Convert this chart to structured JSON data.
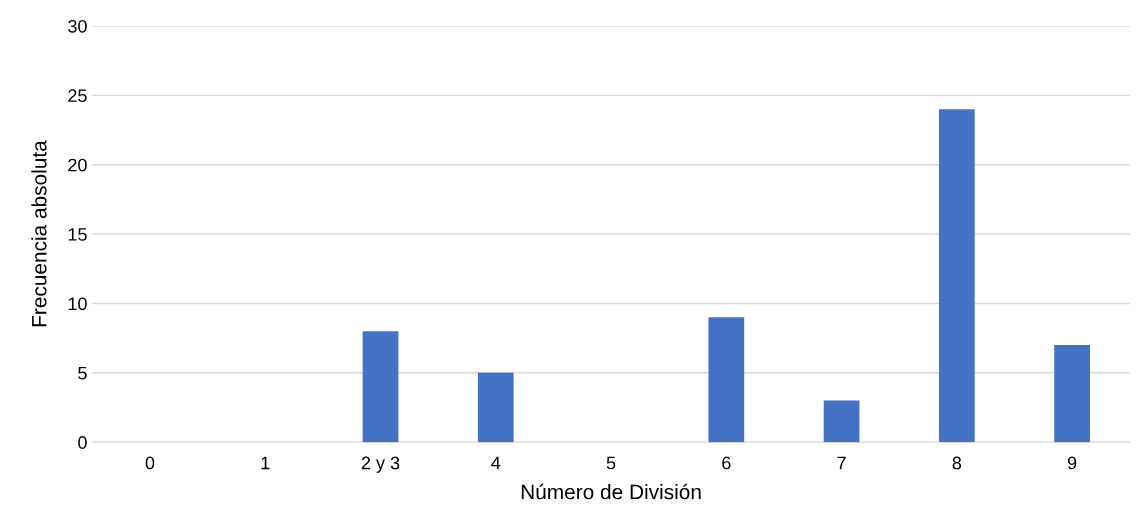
{
  "chart_data": {
    "type": "bar",
    "xlabel": "Número de División",
    "ylabel": "Frecuencia absoluta",
    "categories": [
      "0",
      "1",
      "2 y 3",
      "4",
      "5",
      "6",
      "7",
      "8",
      "9"
    ],
    "values": [
      0,
      0,
      8,
      5,
      0,
      9,
      3,
      24,
      7
    ],
    "color": "#4472c4",
    "ylim": [
      0,
      30
    ],
    "yticks": [
      0,
      5,
      10,
      15,
      20,
      25,
      30
    ],
    "grid": "y",
    "legend": false
  }
}
